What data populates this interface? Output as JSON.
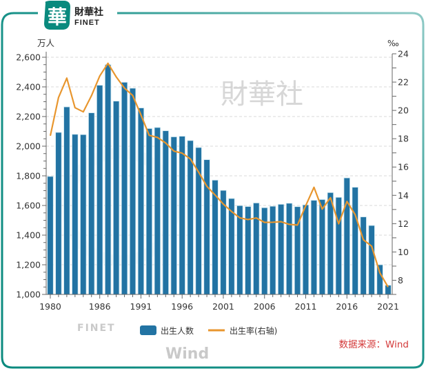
{
  "brand": {
    "logo_char": "華",
    "name_cn": "財華社",
    "name_en": "FINET",
    "primary_color": "#0a8a7e"
  },
  "watermarks": {
    "center_cn": "財華社",
    "center_en": "FINET",
    "corner": "Wind"
  },
  "source": "数据来源：Wind",
  "chart_data": {
    "type": "bar+line",
    "title": "",
    "xlabel": "",
    "left_axis": {
      "unit": "万人",
      "range": [
        1000,
        2600
      ],
      "ticks": [
        "1,000",
        "1,200",
        "1,400",
        "1,600",
        "1,800",
        "2,000",
        "2,200",
        "2,400",
        "2,600"
      ],
      "tick_values": [
        1000,
        1200,
        1400,
        1600,
        1800,
        2000,
        2200,
        2400,
        2600
      ]
    },
    "right_axis": {
      "unit": "‰",
      "range": [
        7,
        24
      ],
      "ticks": [
        "8",
        "10",
        "12",
        "14",
        "16",
        "18",
        "20",
        "22",
        "24"
      ],
      "tick_values": [
        8,
        10,
        12,
        14,
        16,
        18,
        20,
        22,
        24
      ]
    },
    "x_tick_labels": [
      "1980",
      "1986",
      "1991",
      "1996",
      "2001",
      "2006",
      "2011",
      "2016",
      "2021"
    ],
    "categories": [
      1980,
      1981,
      1982,
      1983,
      1984,
      1985,
      1986,
      1987,
      1988,
      1989,
      1990,
      1991,
      1992,
      1993,
      1994,
      1995,
      1996,
      1997,
      1998,
      1999,
      2000,
      2001,
      2002,
      2003,
      2004,
      2005,
      2006,
      2007,
      2008,
      2009,
      2010,
      2011,
      2012,
      2013,
      2014,
      2015,
      2016,
      2017,
      2018,
      2019,
      2020,
      2021
    ],
    "grid": "horizontal dashed",
    "legend_position": "bottom-center",
    "series": [
      {
        "name": "出生人数",
        "type": "bar",
        "axis": "left",
        "color": "#2273a3",
        "values": [
          1796,
          2093,
          2265,
          2080,
          2078,
          2225,
          2411,
          2550,
          2304,
          2431,
          2391,
          2258,
          2119,
          2126,
          2104,
          2063,
          2067,
          2038,
          1991,
          1909,
          1771,
          1702,
          1647,
          1599,
          1593,
          1617,
          1585,
          1595,
          1608,
          1615,
          1592,
          1604,
          1635,
          1640,
          1687,
          1655,
          1786,
          1723,
          1523,
          1465,
          1200,
          1062
        ]
      },
      {
        "name": "出生率(右轴)",
        "type": "line",
        "axis": "right",
        "color": "#e8962e",
        "values": [
          18.21,
          20.91,
          22.28,
          20.19,
          19.9,
          21.04,
          22.43,
          23.33,
          22.37,
          21.58,
          21.06,
          19.68,
          18.24,
          18.09,
          17.7,
          17.12,
          16.98,
          16.57,
          15.64,
          14.64,
          14.03,
          13.38,
          12.86,
          12.41,
          12.29,
          12.4,
          12.09,
          12.1,
          12.14,
          11.95,
          11.9,
          13.27,
          14.57,
          13.03,
          13.83,
          11.99,
          13.57,
          12.64,
          10.86,
          10.41,
          8.52,
          7.52
        ]
      }
    ]
  }
}
